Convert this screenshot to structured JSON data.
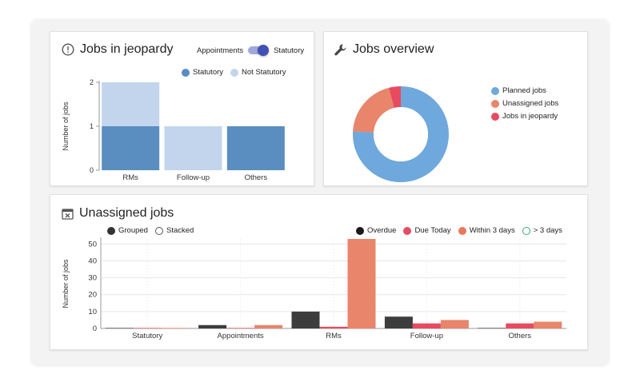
{
  "jeopardy": {
    "title": "Jobs in jeopardy",
    "toggle": {
      "left_label": "Appointments",
      "right_label": "Statutory",
      "selected": "Statutory"
    },
    "legend": [
      {
        "label": "Statutory",
        "color": "#5a8dc0"
      },
      {
        "label": "Not Statutory",
        "color": "#c3d5ec"
      }
    ]
  },
  "overview": {
    "title": "Jobs overview",
    "legend": [
      {
        "label": "Planned jobs",
        "color": "#6fa8dc"
      },
      {
        "label": "Unassigned jobs",
        "color": "#e8856a"
      },
      {
        "label": "Jobs in jeopardy",
        "color": "#e84a5f"
      }
    ]
  },
  "unassigned": {
    "title": "Unassigned jobs",
    "mode_options": [
      {
        "label": "Grouped",
        "selected": true
      },
      {
        "label": "Stacked",
        "selected": false
      }
    ],
    "legend": [
      {
        "label": "Overdue",
        "color": "#1a1a1a",
        "hollow": false
      },
      {
        "label": "Due Today",
        "color": "#e84a5f",
        "hollow": false
      },
      {
        "label": "Within 3 days",
        "color": "#e8785a",
        "hollow": false
      },
      {
        "label": "> 3 days",
        "color": "#3aa876",
        "hollow": true
      }
    ]
  },
  "chart_data": [
    {
      "type": "bar",
      "stacked": true,
      "categories": [
        "RMs",
        "Follow-up",
        "Others"
      ],
      "series": [
        {
          "name": "Statutory",
          "values": [
            1,
            0,
            1
          ],
          "color": "#5a8dc0"
        },
        {
          "name": "Not Statutory",
          "values": [
            1,
            1,
            0
          ],
          "color": "#c3d5ec"
        }
      ],
      "ylabel": "Number of jobs",
      "ylim": [
        0,
        2
      ],
      "yticks": [
        0,
        1,
        2
      ]
    },
    {
      "type": "pie",
      "donut": true,
      "labels": [
        "Planned jobs",
        "Unassigned jobs",
        "Jobs in jeopardy"
      ],
      "values": [
        76,
        20,
        4
      ],
      "colors": [
        "#6fa8dc",
        "#e8856a",
        "#e84a5f"
      ]
    },
    {
      "type": "bar",
      "categories": [
        "Statutory",
        "Appointments",
        "RMs",
        "Follow-up",
        "Others"
      ],
      "series": [
        {
          "name": "Overdue",
          "values": [
            0.3,
            2,
            10,
            7,
            0.3
          ],
          "color": "#3d3d3d"
        },
        {
          "name": "Due Today",
          "values": [
            0.3,
            0.3,
            1,
            3,
            3
          ],
          "color": "#e84a5f"
        },
        {
          "name": "Within 3 days",
          "values": [
            0.3,
            2,
            53,
            5,
            4
          ],
          "color": "#e8856a"
        }
      ],
      "ylabel": "Number of jobs",
      "ylim": [
        0,
        53
      ],
      "yticks": [
        0,
        10,
        20,
        30,
        40,
        50
      ]
    }
  ]
}
